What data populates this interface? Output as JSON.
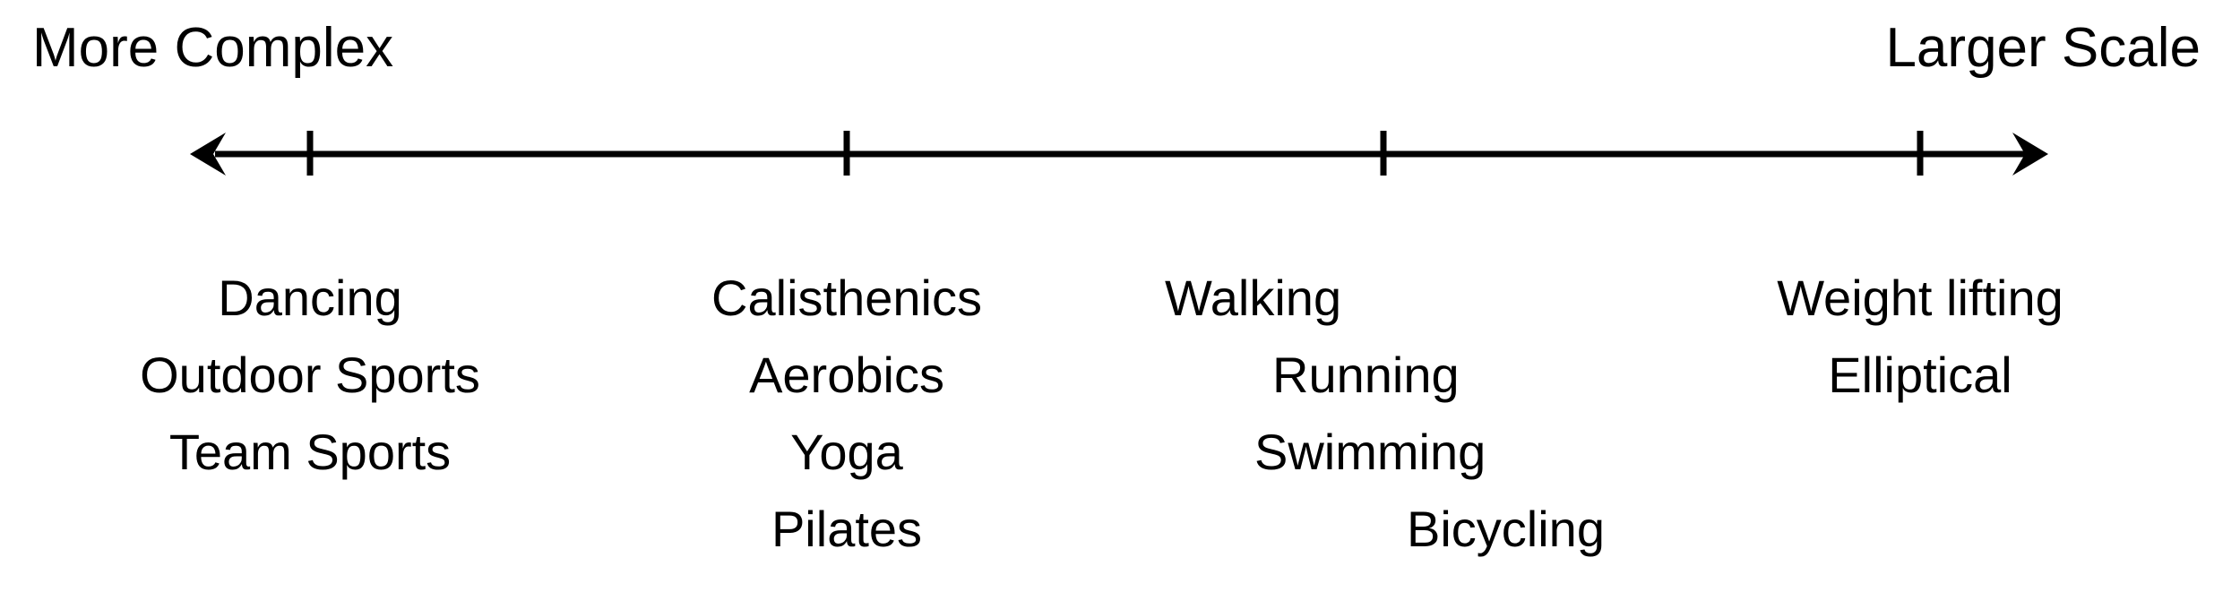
{
  "axis": {
    "left_label": "More Complex",
    "right_label": "Larger Scale",
    "color": "#000000"
  },
  "groups": [
    {
      "items": [
        "Dancing",
        "Outdoor Sports",
        "Team Sports"
      ]
    },
    {
      "items": [
        "Calisthenics",
        "Aerobics",
        "Yoga",
        "Pilates"
      ]
    },
    {
      "items": [
        "Walking",
        "Running",
        "Swimming",
        "Bicycling"
      ]
    },
    {
      "items": [
        "Weight lifting",
        "Elliptical"
      ]
    }
  ]
}
